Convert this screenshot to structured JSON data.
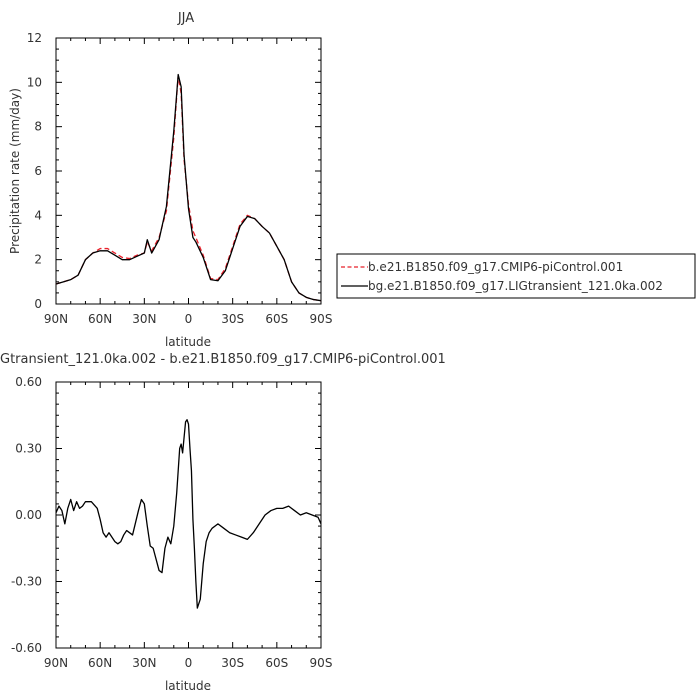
{
  "chart_data": [
    {
      "type": "line",
      "title": "JJA",
      "xlabel": "latitude",
      "ylabel": "Precipitation rate (mm/day)",
      "xlim": [
        90,
        -90
      ],
      "ylim": [
        0,
        12
      ],
      "xticks": [
        90,
        60,
        30,
        0,
        -30,
        -60,
        -90
      ],
      "xtick_labels": [
        "90N",
        "60N",
        "30N",
        "0",
        "30S",
        "60S",
        "90S"
      ],
      "yticks": [
        0,
        2,
        4,
        6,
        8,
        10,
        12
      ],
      "ytick_labels": [
        "0",
        "2",
        "4",
        "6",
        "8",
        "10",
        "12"
      ],
      "legend_position": "right",
      "series": [
        {
          "name": "b.e21.B1850.f09_g17.CMIP6-piControl.001",
          "color": "#e8202a",
          "dash": "dashed",
          "x": [
            90,
            85,
            80,
            75,
            70,
            65,
            60,
            55,
            50,
            45,
            40,
            35,
            30,
            28,
            25,
            20,
            15,
            10,
            7,
            5,
            3,
            0,
            -3,
            -5,
            -10,
            -15,
            -20,
            -25,
            -30,
            -35,
            -40,
            -45,
            -50,
            -55,
            -60,
            -65,
            -70,
            -75,
            -80,
            -85,
            -90
          ],
          "values": [
            0.9,
            1.0,
            1.1,
            1.3,
            2.0,
            2.3,
            2.5,
            2.5,
            2.3,
            2.1,
            2.05,
            2.2,
            2.3,
            2.8,
            2.4,
            3.0,
            4.2,
            7.5,
            10.3,
            9.5,
            6.5,
            4.5,
            3.3,
            3.0,
            2.2,
            1.15,
            1.1,
            1.6,
            2.6,
            3.6,
            4.0,
            3.85,
            3.5,
            3.2,
            2.6,
            2.0,
            1.0,
            0.5,
            0.3,
            0.2,
            0.15
          ]
        },
        {
          "name": "bg.e21.B1850.f09_g17.LIGtransient_121.0ka.002",
          "color": "#000000",
          "dash": "solid",
          "x": [
            90,
            85,
            80,
            75,
            70,
            65,
            60,
            55,
            50,
            45,
            40,
            35,
            30,
            28,
            25,
            20,
            15,
            10,
            7,
            5,
            3,
            0,
            -3,
            -5,
            -10,
            -15,
            -20,
            -25,
            -30,
            -35,
            -40,
            -45,
            -50,
            -55,
            -60,
            -65,
            -70,
            -75,
            -80,
            -85,
            -90
          ],
          "values": [
            0.9,
            1.0,
            1.1,
            1.3,
            2.0,
            2.3,
            2.4,
            2.4,
            2.2,
            2.0,
            2.0,
            2.15,
            2.3,
            2.9,
            2.3,
            2.9,
            4.4,
            7.8,
            10.35,
            9.8,
            6.7,
            4.3,
            3.0,
            2.8,
            2.1,
            1.1,
            1.05,
            1.5,
            2.5,
            3.5,
            3.95,
            3.85,
            3.5,
            3.2,
            2.6,
            2.0,
            1.0,
            0.5,
            0.3,
            0.2,
            0.15
          ]
        }
      ]
    },
    {
      "type": "line",
      "title": "Gtransient_121.0ka.002 - b.e21.B1850.f09_g17.CMIP6-piControl.001",
      "xlabel": "latitude",
      "ylabel": "",
      "xlim": [
        90,
        -90
      ],
      "ylim": [
        -0.6,
        0.6
      ],
      "xticks": [
        90,
        60,
        30,
        0,
        -30,
        -60,
        -90
      ],
      "xtick_labels": [
        "90N",
        "60N",
        "30N",
        "0",
        "30S",
        "60S",
        "90S"
      ],
      "yticks": [
        0.6,
        0.3,
        0.0,
        -0.3,
        -0.6
      ],
      "ytick_labels": [
        "0.60",
        "0.30",
        "0.00",
        "-0.30",
        "-0.60"
      ],
      "series": [
        {
          "color": "#000000",
          "x": [
            90,
            88,
            86,
            84,
            82,
            80,
            78,
            76,
            74,
            72,
            70,
            66,
            62,
            60,
            58,
            56,
            54,
            50,
            48,
            46,
            44,
            42,
            38,
            34,
            32,
            30,
            28,
            26,
            24,
            22,
            20,
            18,
            16,
            14,
            12,
            10,
            8,
            6,
            5,
            4,
            3,
            2,
            1,
            0,
            -1,
            -2,
            -3,
            -4,
            -5,
            -6,
            -8,
            -10,
            -12,
            -14,
            -16,
            -20,
            -24,
            -28,
            -32,
            -36,
            -40,
            -44,
            -48,
            -52,
            -56,
            -60,
            -64,
            -68,
            -72,
            -76,
            -80,
            -84,
            -88,
            -90
          ],
          "values": [
            0.01,
            0.04,
            0.02,
            -0.04,
            0.03,
            0.07,
            0.02,
            0.06,
            0.03,
            0.04,
            0.06,
            0.06,
            0.03,
            -0.02,
            -0.08,
            -0.1,
            -0.08,
            -0.12,
            -0.13,
            -0.12,
            -0.09,
            -0.07,
            -0.09,
            0.02,
            0.07,
            0.05,
            -0.05,
            -0.14,
            -0.15,
            -0.2,
            -0.25,
            -0.26,
            -0.15,
            -0.1,
            -0.13,
            -0.05,
            0.1,
            0.3,
            0.32,
            0.28,
            0.35,
            0.42,
            0.43,
            0.41,
            0.3,
            0.2,
            -0.02,
            -0.15,
            -0.3,
            -0.42,
            -0.38,
            -0.22,
            -0.12,
            -0.08,
            -0.06,
            -0.04,
            -0.06,
            -0.08,
            -0.09,
            -0.1,
            -0.11,
            -0.08,
            -0.04,
            0.0,
            0.02,
            0.03,
            0.03,
            0.04,
            0.02,
            0.0,
            0.01,
            0.0,
            -0.01,
            -0.04
          ]
        }
      ]
    }
  ]
}
